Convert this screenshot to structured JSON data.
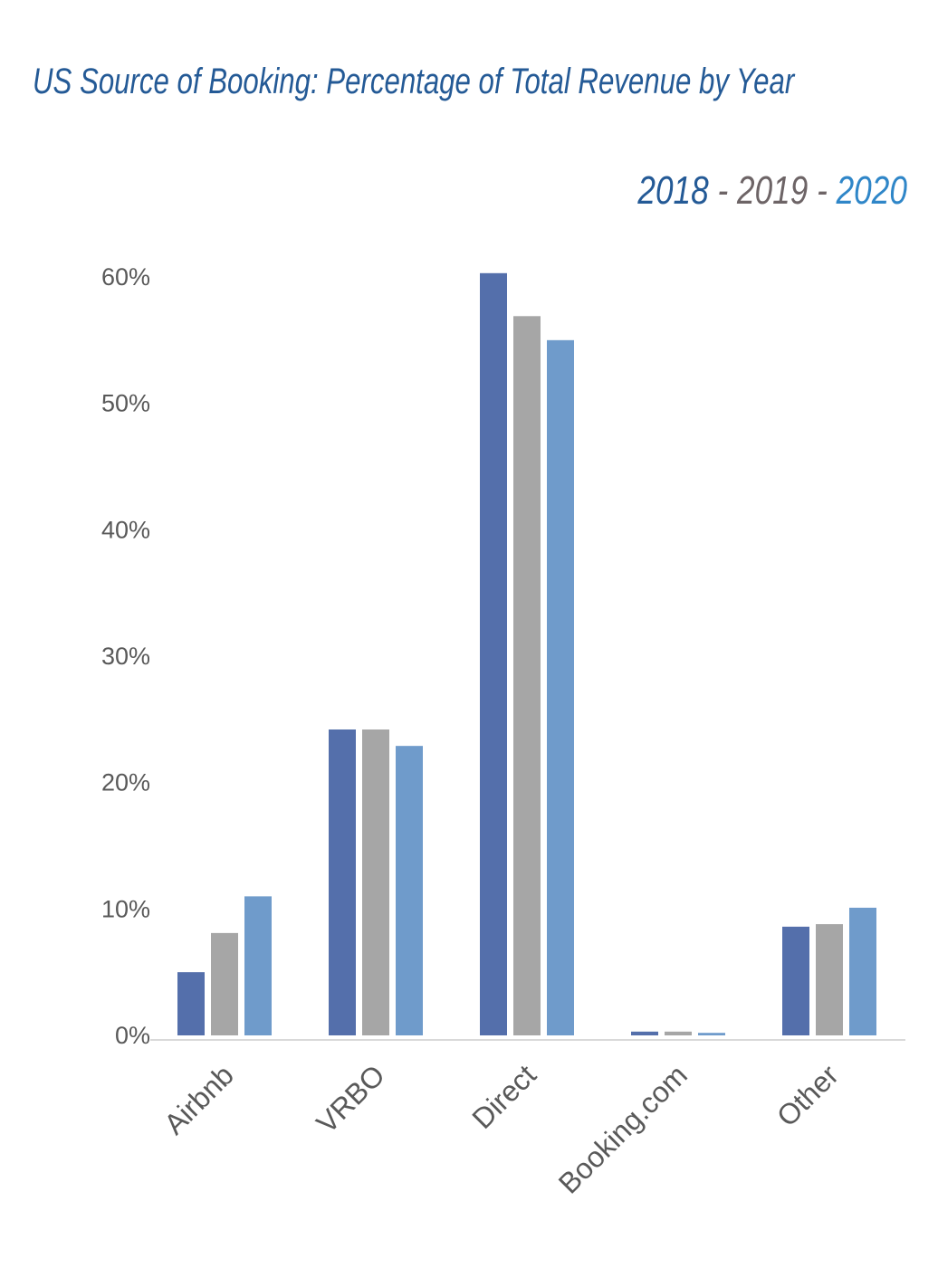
{
  "chart_data": {
    "type": "bar",
    "title": "US Source of Booking: Percentage of Total Revenue by Year",
    "categories": [
      "Airbnb",
      "VRBO",
      "Direct",
      "Booking.com",
      "Other"
    ],
    "series": [
      {
        "name": "2018",
        "color": "#546fab",
        "legend_color": "#245a96",
        "values": [
          5.0,
          24.2,
          60.3,
          0.3,
          8.6
        ]
      },
      {
        "name": "2019",
        "color": "#a6a6a6",
        "legend_color": "#6d6466",
        "values": [
          8.1,
          24.2,
          56.9,
          0.3,
          8.8
        ]
      },
      {
        "name": "2020",
        "color": "#6f9bcb",
        "legend_color": "#2f86c8",
        "values": [
          11.0,
          22.9,
          55.0,
          0.2,
          10.1
        ]
      }
    ],
    "yticks": [
      "0%",
      "10%",
      "20%",
      "30%",
      "40%",
      "50%",
      "60%"
    ],
    "ytick_values": [
      0,
      10,
      20,
      30,
      40,
      50,
      60
    ],
    "ylim": [
      0,
      60
    ],
    "xlabel": "",
    "ylabel": "",
    "grid": false,
    "legend_separator": "-",
    "legend_position": "top-right"
  }
}
